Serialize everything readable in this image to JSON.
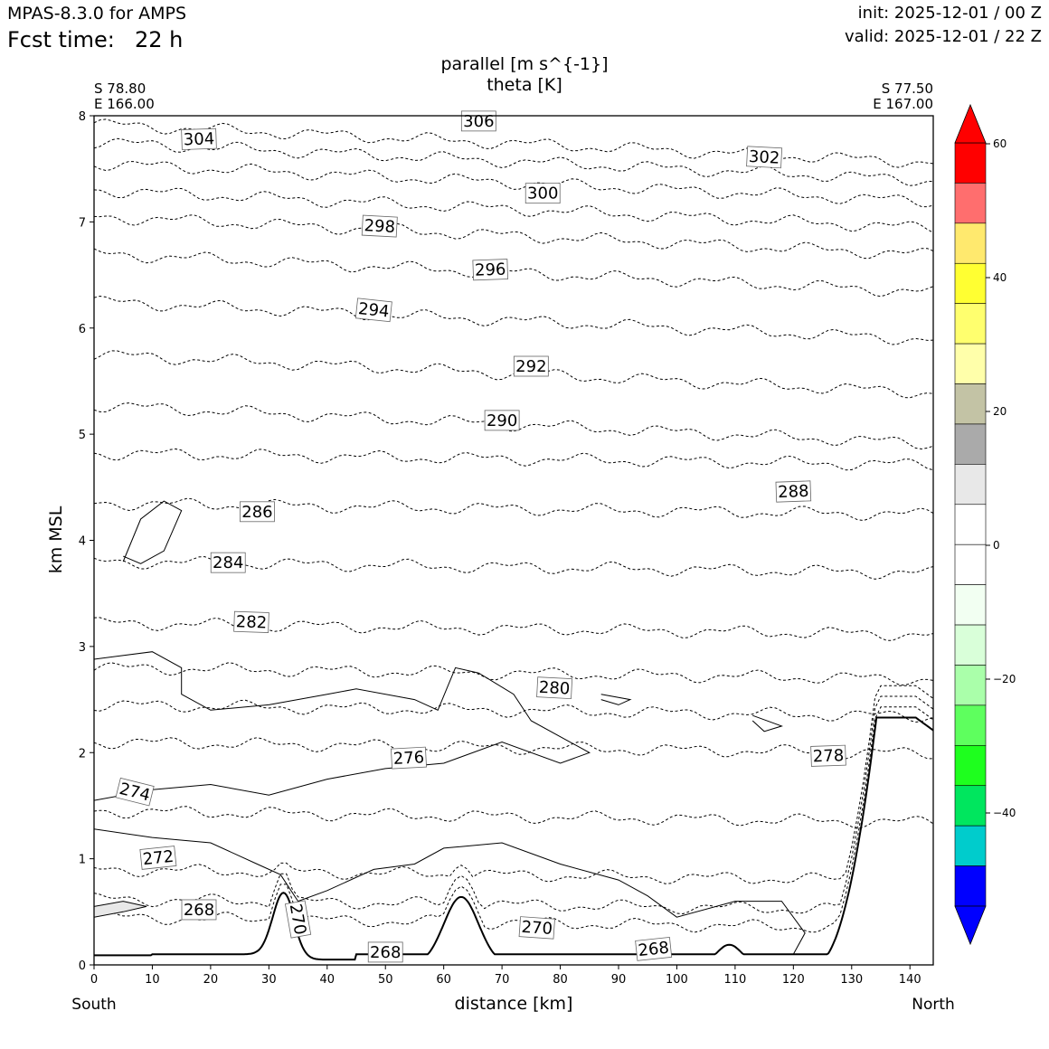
{
  "header": {
    "model": "MPAS-8.3.0 for AMPS",
    "fcst_label": "Fcst time:",
    "fcst_value": "22 h",
    "init": "init: 2025-12-01 / 00 Z",
    "valid": "valid: 2025-12-01 / 22 Z"
  },
  "chart_data": {
    "type": "contour",
    "title_line1": "parallel [m s^{-1}]",
    "title_line2": "theta [K]",
    "xlabel": "distance [km]",
    "ylabel": "km MSL",
    "xlim": [
      0,
      144
    ],
    "ylim": [
      0,
      8
    ],
    "x_ticks": [
      "0",
      "10",
      "20",
      "30",
      "40",
      "50",
      "60",
      "70",
      "80",
      "90",
      "100",
      "110",
      "120",
      "130",
      "140"
    ],
    "y_ticks": [
      "0",
      "1",
      "2",
      "3",
      "4",
      "5",
      "6",
      "7",
      "8"
    ],
    "start_point": {
      "lat": "S 78.80",
      "lon": "E 166.00"
    },
    "end_point": {
      "lat": "S 77.50",
      "lon": "E 167.00"
    },
    "direction_left": "South",
    "direction_right": "North",
    "colorbar": {
      "ticks": [
        "60",
        "40",
        "20",
        "0",
        "−20",
        "−40"
      ],
      "colors": [
        "#ff0000",
        "#ff6e6e",
        "#ffe96e",
        "#ffff32",
        "#ffff6e",
        "#ffffaa",
        "#c3c3a5",
        "#aaaaaa",
        "#e8e8e8",
        "#ffffff",
        "#ffffff",
        "#f2fff2",
        "#d9ffd9",
        "#aaffaa",
        "#5eff5e",
        "#1eff1e",
        "#00e65e",
        "#00cccc",
        "#0000ff"
      ],
      "over_color": "#ff0000",
      "under_color": "#0000ff"
    },
    "theta_labels": [
      {
        "text": "306",
        "x": 66,
        "y": 7.95,
        "rot": 0
      },
      {
        "text": "304",
        "x": 18,
        "y": 7.78,
        "rot": -2
      },
      {
        "text": "302",
        "x": 115,
        "y": 7.61,
        "rot": 3
      },
      {
        "text": "300",
        "x": 77,
        "y": 7.27,
        "rot": 0
      },
      {
        "text": "298",
        "x": 49,
        "y": 6.96,
        "rot": 3
      },
      {
        "text": "296",
        "x": 68,
        "y": 6.55,
        "rot": -2
      },
      {
        "text": "294",
        "x": 48,
        "y": 6.17,
        "rot": 6
      },
      {
        "text": "292",
        "x": 75,
        "y": 5.64,
        "rot": 0
      },
      {
        "text": "290",
        "x": 70,
        "y": 5.13,
        "rot": 0
      },
      {
        "text": "288",
        "x": 120,
        "y": 4.46,
        "rot": -2
      },
      {
        "text": "286",
        "x": 28,
        "y": 4.27,
        "rot": 0
      },
      {
        "text": "284",
        "x": 23,
        "y": 3.79,
        "rot": 0
      },
      {
        "text": "282",
        "x": 27,
        "y": 3.23,
        "rot": 2
      },
      {
        "text": "280",
        "x": 79,
        "y": 2.61,
        "rot": 3
      },
      {
        "text": "278",
        "x": 126,
        "y": 1.97,
        "rot": -2
      },
      {
        "text": "276",
        "x": 54,
        "y": 1.95,
        "rot": -3
      },
      {
        "text": "274",
        "x": 7,
        "y": 1.63,
        "rot": 14
      },
      {
        "text": "272",
        "x": 11,
        "y": 1.01,
        "rot": -6
      },
      {
        "text": "268",
        "x": 18,
        "y": 0.52,
        "rot": 0
      },
      {
        "text": "270",
        "x": 35,
        "y": 0.43,
        "rot": 80
      },
      {
        "text": "270",
        "x": 76,
        "y": 0.35,
        "rot": 4
      },
      {
        "text": "268",
        "x": 50,
        "y": 0.12,
        "rot": 0
      },
      {
        "text": "268",
        "x": 96,
        "y": 0.15,
        "rot": -6
      }
    ]
  }
}
